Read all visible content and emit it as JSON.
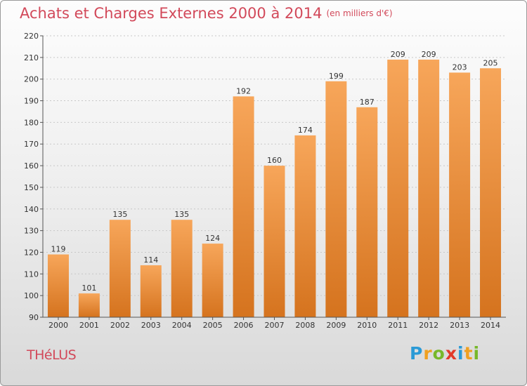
{
  "chart_data": {
    "type": "bar",
    "title": "Achats et Charges Externes 2000 à 2014",
    "subtitle": "(en milliers d'€)",
    "categories": [
      "2000",
      "2001",
      "2002",
      "2003",
      "2004",
      "2005",
      "2006",
      "2007",
      "2008",
      "2009",
      "2010",
      "2011",
      "2012",
      "2013",
      "2014"
    ],
    "values": [
      119,
      101,
      135,
      114,
      135,
      124,
      192,
      160,
      174,
      199,
      187,
      209,
      209,
      203,
      205
    ],
    "ylim": [
      90,
      220
    ],
    "yticks": [
      90,
      100,
      110,
      120,
      130,
      140,
      150,
      160,
      170,
      180,
      190,
      200,
      210,
      220
    ],
    "xlabel": "",
    "ylabel": "",
    "grid": true,
    "bar_color_top": "#f7a65a",
    "bar_color_bottom": "#d5731e"
  },
  "commune": "THéLUS",
  "logo": {
    "letters": [
      "P",
      "r",
      "o",
      "x",
      "i",
      "t",
      "i"
    ],
    "colors": [
      "#2a9ad6",
      "#f0a020",
      "#77b82a",
      "#e23a2a",
      "#2a9ad6",
      "#f0a020",
      "#77b82a"
    ]
  }
}
